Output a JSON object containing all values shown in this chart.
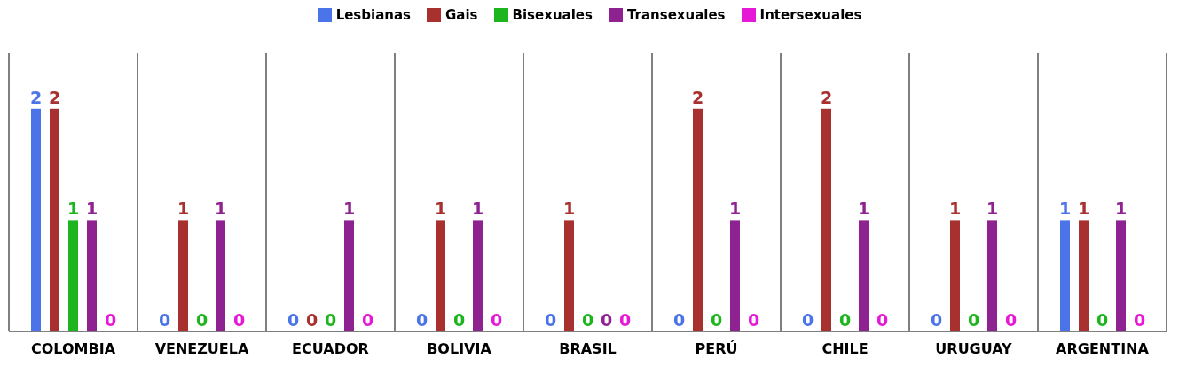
{
  "chart_data": {
    "type": "bar",
    "categories": [
      "COLOMBIA",
      "VENEZUELA",
      "ECUADOR",
      "BOLIVIA",
      "BRASIL",
      "PERÚ",
      "CHILE",
      "URUGUAY",
      "ARGENTINA"
    ],
    "series": [
      {
        "name": "Lesbianas",
        "color": "#4a74e8",
        "values": [
          2,
          0,
          0,
          0,
          0,
          0,
          0,
          0,
          1
        ]
      },
      {
        "name": "Gais",
        "color": "#a8302e",
        "values": [
          2,
          1,
          0,
          1,
          1,
          2,
          2,
          1,
          1
        ]
      },
      {
        "name": "Bisexuales",
        "color": "#1db51d",
        "values": [
          1,
          0,
          0,
          0,
          0,
          0,
          0,
          0,
          0
        ]
      },
      {
        "name": "Transexuales",
        "color": "#8e2290",
        "values": [
          1,
          1,
          1,
          1,
          0,
          1,
          1,
          1,
          1
        ]
      },
      {
        "name": "Intersexuales",
        "color": "#e619d6",
        "values": [
          0,
          0,
          0,
          0,
          0,
          0,
          0,
          0,
          0
        ]
      }
    ],
    "data_labels": true,
    "grid": "x",
    "legend": "top"
  }
}
